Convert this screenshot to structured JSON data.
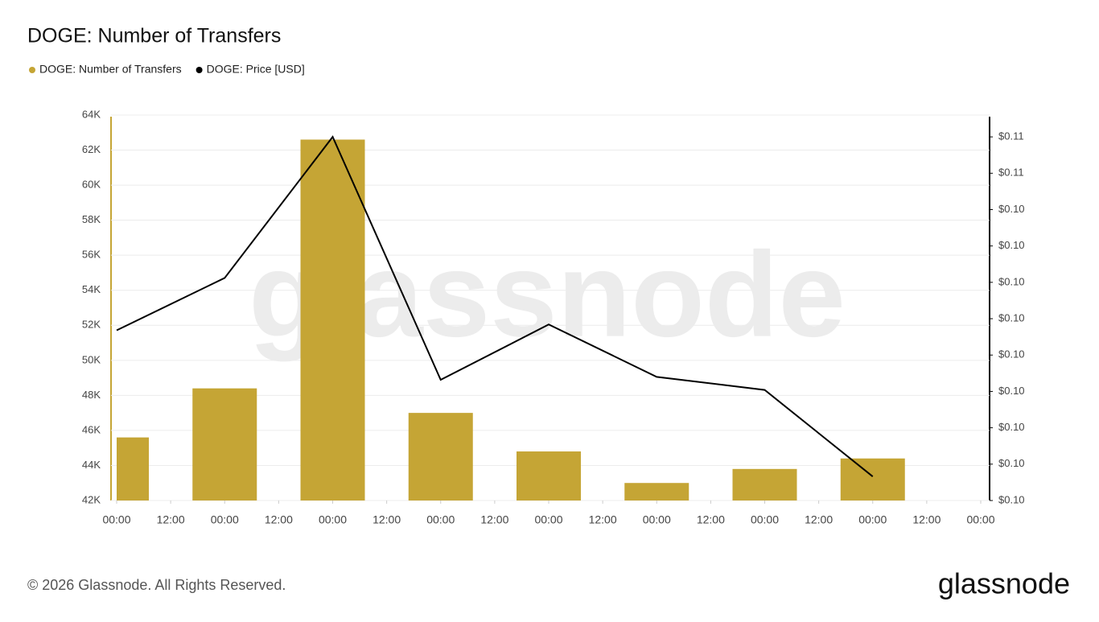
{
  "chart_data": {
    "type": "bar",
    "title": "DOGE: Number of Transfers",
    "watermark": "glassnode",
    "footer": "© 2026 Glassnode. All Rights Reserved.",
    "logo": "glassnode",
    "legend": "top-left",
    "grid": true,
    "x": [
      0,
      24,
      48,
      72,
      96,
      120,
      144,
      168
    ],
    "xlim": [
      0,
      192
    ],
    "xticks": [
      {
        "value": 0,
        "label": "00:00"
      },
      {
        "value": 12,
        "label": "12:00"
      },
      {
        "value": 24,
        "label": "00:00"
      },
      {
        "value": 36,
        "label": "12:00"
      },
      {
        "value": 48,
        "label": "00:00"
      },
      {
        "value": 60,
        "label": "12:00"
      },
      {
        "value": 72,
        "label": "00:00"
      },
      {
        "value": 84,
        "label": "12:00"
      },
      {
        "value": 96,
        "label": "00:00"
      },
      {
        "value": 108,
        "label": "12:00"
      },
      {
        "value": 120,
        "label": "00:00"
      },
      {
        "value": 132,
        "label": "12:00"
      },
      {
        "value": 144,
        "label": "00:00"
      },
      {
        "value": 156,
        "label": "12:00"
      },
      {
        "value": 168,
        "label": "00:00"
      },
      {
        "value": 180,
        "label": "12:00"
      },
      {
        "value": 192,
        "label": "00:00"
      }
    ],
    "ylim": [
      42000,
      64000
    ],
    "yticks": [
      {
        "value": 42000,
        "label": "42K"
      },
      {
        "value": 44000,
        "label": "44K"
      },
      {
        "value": 46000,
        "label": "46K"
      },
      {
        "value": 48000,
        "label": "48K"
      },
      {
        "value": 50000,
        "label": "50K"
      },
      {
        "value": 52000,
        "label": "52K"
      },
      {
        "value": 54000,
        "label": "54K"
      },
      {
        "value": 56000,
        "label": "56K"
      },
      {
        "value": 58000,
        "label": "58K"
      },
      {
        "value": 60000,
        "label": "60K"
      },
      {
        "value": 62000,
        "label": "62K"
      },
      {
        "value": 64000,
        "label": "64K"
      }
    ],
    "y2lim": [
      0.1005,
      0.1058
    ],
    "y2ticks": [
      {
        "value": 0.1005,
        "label": "$0.10"
      },
      {
        "value": 0.101,
        "label": "$0.10"
      },
      {
        "value": 0.1015,
        "label": "$0.10"
      },
      {
        "value": 0.102,
        "label": "$0.10"
      },
      {
        "value": 0.1025,
        "label": "$0.10"
      },
      {
        "value": 0.103,
        "label": "$0.10"
      },
      {
        "value": 0.1035,
        "label": "$0.10"
      },
      {
        "value": 0.104,
        "label": "$0.10"
      },
      {
        "value": 0.1045,
        "label": "$0.10"
      },
      {
        "value": 0.105,
        "label": "$0.11"
      },
      {
        "value": 0.1055,
        "label": "$0.11"
      }
    ],
    "series": [
      {
        "name": "DOGE: Number of Transfers",
        "type": "bar",
        "color": "#c5a535",
        "values": [
          45600,
          48400,
          62600,
          47000,
          44800,
          43000,
          43800,
          44400
        ]
      },
      {
        "name": "DOGE: Price [USD]",
        "type": "line",
        "axis": "y2",
        "color": "#000000",
        "values": [
          0.10284,
          0.10356,
          0.1055,
          0.10216,
          0.10292,
          0.1022,
          0.10202,
          0.10083
        ]
      }
    ]
  }
}
